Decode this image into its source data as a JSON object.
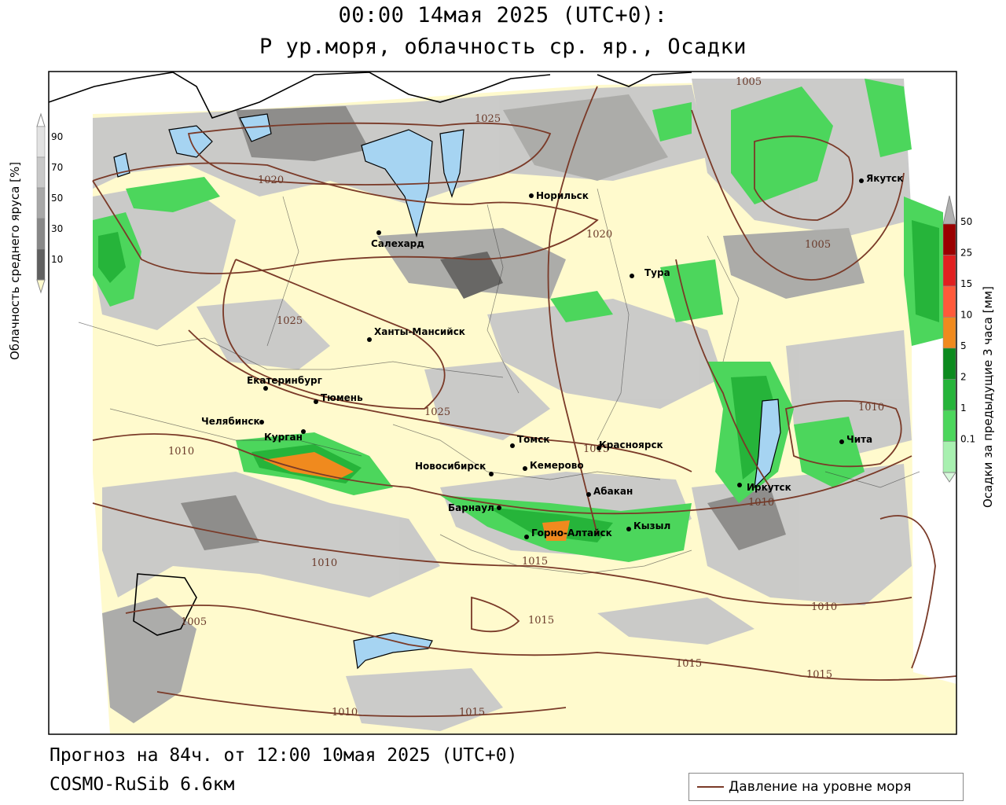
{
  "header": {
    "title_line1": "00:00 14мая 2025 (UTC+0):",
    "title_line2": "P ур.моря, облачность ср. яр., Осадки"
  },
  "footer": {
    "forecast": "Прогноз на 84ч. от 12:00 10мая 2025 (UTC+0)",
    "model": "COSMO-RuSib 6.6км"
  },
  "legend": {
    "pressure_label": "Давление на уровне моря",
    "pressure_color": "#7a3a28"
  },
  "cloud_scale": {
    "title": "Облачность среднего яруса [%]",
    "ticks": [
      "90",
      "70",
      "50",
      "30",
      "10"
    ],
    "colors": [
      "#e2e2e2",
      "#c8c8c8",
      "#a8a8a8",
      "#888888",
      "#606060"
    ]
  },
  "precip_scale": {
    "title": "Осадки за предыдущие 3 часа [мм]",
    "ticks": [
      "50",
      "25",
      "15",
      "10",
      "5",
      "2",
      "1",
      "0.1"
    ],
    "colors": [
      "#9a0000",
      "#e02020",
      "#ff5a3a",
      "#f08a1e",
      "#0c8a1e",
      "#26b43a",
      "#4cd65c",
      "#a8f0b0"
    ]
  },
  "map": {
    "land_color": "#fffacd",
    "water_color": "#a6d4f2",
    "cities": [
      {
        "name": "Норильск"
      },
      {
        "name": "Якутск"
      },
      {
        "name": "Салехард"
      },
      {
        "name": "Тура"
      },
      {
        "name": "Ханты-Мансийск"
      },
      {
        "name": "Екатеринбург"
      },
      {
        "name": "Тюмень"
      },
      {
        "name": "Челябинск"
      },
      {
        "name": "Курган"
      },
      {
        "name": "Томск"
      },
      {
        "name": "Красноярск"
      },
      {
        "name": "Новосибирск"
      },
      {
        "name": "Кемерово"
      },
      {
        "name": "Абакан"
      },
      {
        "name": "Чита"
      },
      {
        "name": "Иркутск"
      },
      {
        "name": "Барнаул"
      },
      {
        "name": "Горно-Алтайск"
      },
      {
        "name": "Кызыл"
      }
    ],
    "isobar_labels": [
      "1025",
      "1020",
      "1025",
      "1025",
      "1020",
      "1005",
      "1005",
      "1010",
      "1010",
      "1010",
      "1010",
      "1015",
      "1015",
      "1005",
      "1010",
      "1015",
      "1015",
      "1015",
      "1010",
      "1015"
    ]
  }
}
